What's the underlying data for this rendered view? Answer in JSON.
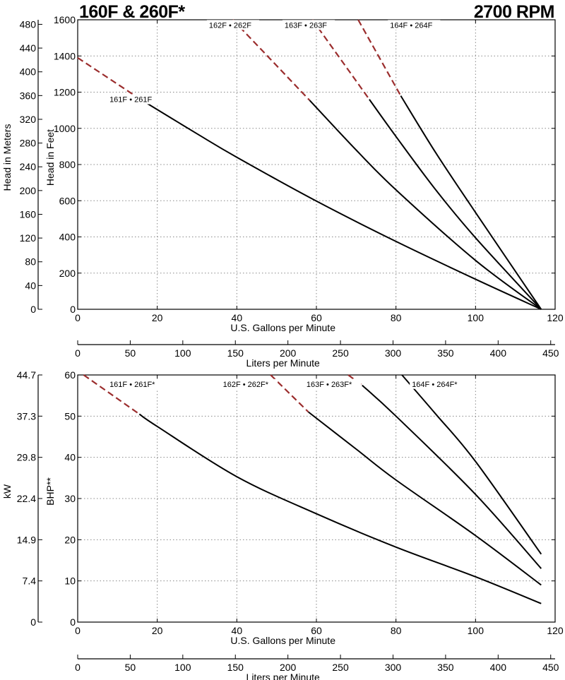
{
  "header": {
    "title_left": "160F & 260F*",
    "title_right": "2700 RPM"
  },
  "chart_data": [
    {
      "type": "line",
      "title": "160F & 260F*",
      "xlabel": "U.S. Gallons per Minute",
      "xlabel_secondary": "Liters per Minute",
      "ylabel": "Head in Feet",
      "ylabel_secondary": "Head in Meters",
      "xlim": [
        0,
        120
      ],
      "ylim": [
        0,
        1600
      ],
      "x_ticks": [
        0,
        20,
        40,
        60,
        80,
        100,
        120
      ],
      "y_ticks": [
        0,
        200,
        400,
        600,
        800,
        1000,
        1200,
        1400,
        1600
      ],
      "y2_ticks": [
        0,
        40,
        80,
        120,
        160,
        200,
        240,
        280,
        320,
        360,
        400,
        440,
        480
      ],
      "x2_ticks": [
        0,
        50,
        100,
        150,
        200,
        250,
        300,
        350,
        400,
        450
      ],
      "x2_per_x": 3.785,
      "y2_per_y": 0.3048,
      "grid": true,
      "series": [
        {
          "name": "161F • 261F",
          "dashed": [
            [
              0,
              1390
            ],
            [
              15.8,
              1160
            ]
          ],
          "solid": [
            [
              15.8,
              1160
            ],
            [
              30,
              970
            ],
            [
              40,
              840
            ],
            [
              60,
              598
            ],
            [
              80,
              375
            ],
            [
              100,
              166
            ],
            [
              116.5,
              0
            ]
          ],
          "label_at": [
            8,
            1149
          ]
        },
        {
          "name": "162F • 262F",
          "dashed": [
            [
              39,
              1600
            ],
            [
              58.3,
              1155
            ]
          ],
          "solid": [
            [
              58.3,
              1155
            ],
            [
              70,
              880
            ],
            [
              80,
              660
            ],
            [
              100,
              270
            ],
            [
              116.5,
              0
            ]
          ],
          "label_at": [
            33,
            1560
          ]
        },
        {
          "name": "163F • 263F",
          "dashed": [
            [
              59,
              1600
            ],
            [
              73.3,
              1160
            ]
          ],
          "solid": [
            [
              73.3,
              1160
            ],
            [
              80,
              955
            ],
            [
              90,
              660
            ],
            [
              100,
              395
            ],
            [
              116.5,
              0
            ]
          ],
          "label_at": [
            52,
            1560
          ]
        },
        {
          "name": "164F • 264F",
          "dashed": [
            [
              70.5,
              1600
            ],
            [
              81.2,
              1180
            ]
          ],
          "solid": [
            [
              81.2,
              1180
            ],
            [
              90,
              865
            ],
            [
              100,
              535
            ],
            [
              116.5,
              0
            ]
          ],
          "label_at": [
            78.5,
            1560
          ]
        }
      ]
    },
    {
      "type": "line",
      "xlabel": "U.S. Gallons per Minute",
      "xlabel_secondary": "Liters per Minute",
      "ylabel": "BHP**",
      "ylabel_secondary": "kW",
      "xlim": [
        0,
        120
      ],
      "ylim": [
        0,
        60
      ],
      "x_ticks": [
        0,
        20,
        40,
        60,
        80,
        100,
        120
      ],
      "y_ticks": [
        10,
        20,
        30,
        40,
        50,
        60
      ],
      "y_tick_zero": "0",
      "y2_ticks": [
        "0",
        "7.4",
        "14.9",
        "22.4",
        "29.8",
        "37.3",
        "44.7"
      ],
      "x2_ticks": [
        0,
        50,
        100,
        150,
        200,
        250,
        300,
        350,
        400,
        450
      ],
      "x2_per_x": 3.785,
      "grid": true,
      "series": [
        {
          "name": "161F • 261F*",
          "dashed": [
            [
              1.5,
              60
            ],
            [
              15.5,
              50.5
            ]
          ],
          "solid": [
            [
              15.5,
              50.5
            ],
            [
              20,
              47.5
            ],
            [
              40,
              35.3
            ],
            [
              60,
              26.3
            ],
            [
              80,
              18.2
            ],
            [
              100,
              11
            ],
            [
              116.5,
              4.5
            ]
          ],
          "label_at": [
            8,
            57.3
          ]
        },
        {
          "name": "162F • 262F*",
          "dashed": [
            [
              48.5,
              60
            ],
            [
              58,
              51
            ]
          ],
          "solid": [
            [
              58,
              51
            ],
            [
              70,
              42
            ],
            [
              80,
              34.5
            ],
            [
              100,
              21
            ],
            [
              116.5,
              9
            ]
          ],
          "label_at": [
            36.5,
            57.3
          ]
        },
        {
          "name": "163F • 263F*",
          "dashed": [
            [
              68,
              60
            ],
            [
              71.5,
              57.5
            ]
          ],
          "solid": [
            [
              71.5,
              57.5
            ],
            [
              80,
              50
            ],
            [
              100,
              31
            ],
            [
              116.5,
              13
            ]
          ],
          "label_at": [
            57.5,
            57.3
          ]
        },
        {
          "name": "164F • 264F*",
          "dashed": [],
          "solid": [
            [
              81.5,
              60
            ],
            [
              90,
              50.5
            ],
            [
              100,
              39
            ],
            [
              116.5,
              16.5
            ]
          ],
          "label_at": [
            84,
            57.3
          ]
        }
      ]
    }
  ],
  "colors": {
    "curve": "#000000",
    "dashed": "#9b2d2d",
    "grid": "#888888",
    "axis": "#000000"
  }
}
